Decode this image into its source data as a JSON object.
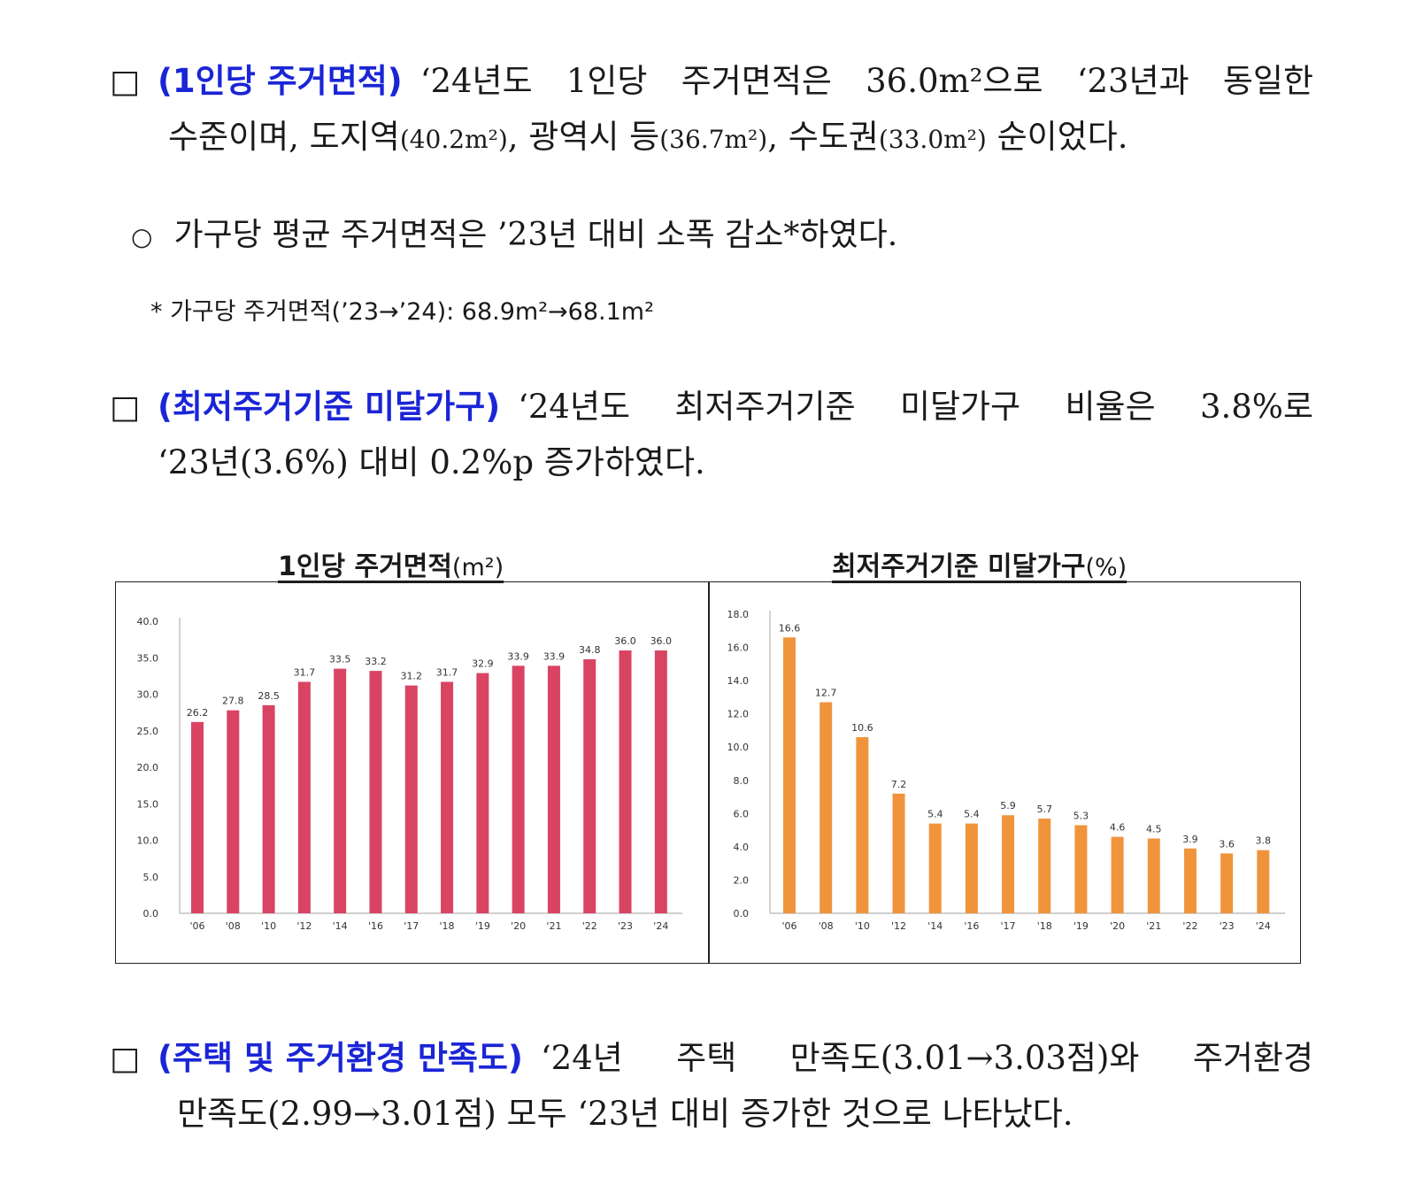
{
  "sections": [
    {
      "box": "□",
      "heading": "(1인당 주거면적)",
      "line1": "‘24년도 1인당 주거면적은 36.0m²으로 ‘23년과 동일한",
      "line2_parts": [
        "수준이며, 도지역",
        "(40.2m²)",
        ", 광역시 등",
        "(36.7m²)",
        ", 수도권",
        "(33.0m²)",
        " 순이었다."
      ]
    },
    {
      "box": "□",
      "heading": "(최저주거기준 미달가구)",
      "line1": "‘24년도 최저주거기준 미달가구 비율은 3.8%로",
      "line2": "‘23년(3.6%) 대비 0.2%p 증가하였다."
    },
    {
      "box": "□",
      "heading": "(주택 및 주거환경 만족도)",
      "line1": "‘24년 주택 만족도(3.01→3.03점)와 주거환경",
      "line2": "만족도(2.99→3.01점) 모두 ‘23년 대비 증가한 것으로 나타났다."
    }
  ],
  "sub_bullet": {
    "marker": "○",
    "text": "가구당 평균 주거면적은 ’23년 대비 소폭 감소*하였다."
  },
  "footnote": {
    "text": "* 가구당 주거면적(’23→’24): 68.9m²→68.1m²"
  },
  "chart_titles": {
    "left": "1인당 주거면적",
    "left_unit": "(m²)",
    "right": "최저주거기준 미달가구",
    "right_unit": "(%)"
  },
  "chart_data": [
    {
      "type": "bar",
      "title": "1인당 주거면적(m²)",
      "categories": [
        "'06",
        "'08",
        "'10",
        "'12",
        "'14",
        "'16",
        "'17",
        "'18",
        "'19",
        "'20",
        "'21",
        "'22",
        "'23",
        "'24"
      ],
      "values": [
        26.2,
        27.8,
        28.5,
        31.7,
        33.5,
        33.2,
        31.2,
        31.7,
        32.9,
        33.9,
        33.9,
        34.8,
        36.0,
        36.0
      ],
      "labels": [
        "26.2",
        "27.8",
        "28.5",
        "31.7",
        "33.5",
        "33.2",
        "31.2",
        "31.7",
        "32.9",
        "33.9",
        "33.9",
        "34.8",
        "36.0",
        "36.0"
      ],
      "ylim": [
        0,
        40
      ],
      "yticks": [
        "0.0",
        "5.0",
        "10.0",
        "15.0",
        "20.0",
        "25.0",
        "30.0",
        "35.0",
        "40.0"
      ],
      "color": "#d94463",
      "grid": false,
      "legend": "none"
    },
    {
      "type": "bar",
      "title": "최저주거기준 미달가구(%)",
      "categories": [
        "'06",
        "'08",
        "'10",
        "'12",
        "'14",
        "'16",
        "'17",
        "'18",
        "'19",
        "'20",
        "'21",
        "'22",
        "'23",
        "'24"
      ],
      "values": [
        16.6,
        12.7,
        10.6,
        7.2,
        5.4,
        5.4,
        5.9,
        5.7,
        5.3,
        4.6,
        4.5,
        3.9,
        3.6,
        3.8
      ],
      "labels": [
        "16.6",
        "12.7",
        "10.6",
        "7.2",
        "5.4",
        "5.4",
        "5.9",
        "5.7",
        "5.3",
        "4.6",
        "4.5",
        "3.9",
        "3.6",
        "3.8"
      ],
      "ylim": [
        0,
        18
      ],
      "yticks": [
        "0.0",
        "2.0",
        "4.0",
        "6.0",
        "8.0",
        "10.0",
        "12.0",
        "14.0",
        "16.0",
        "18.0"
      ],
      "color": "#f0943c",
      "grid": false,
      "legend": "none"
    }
  ]
}
